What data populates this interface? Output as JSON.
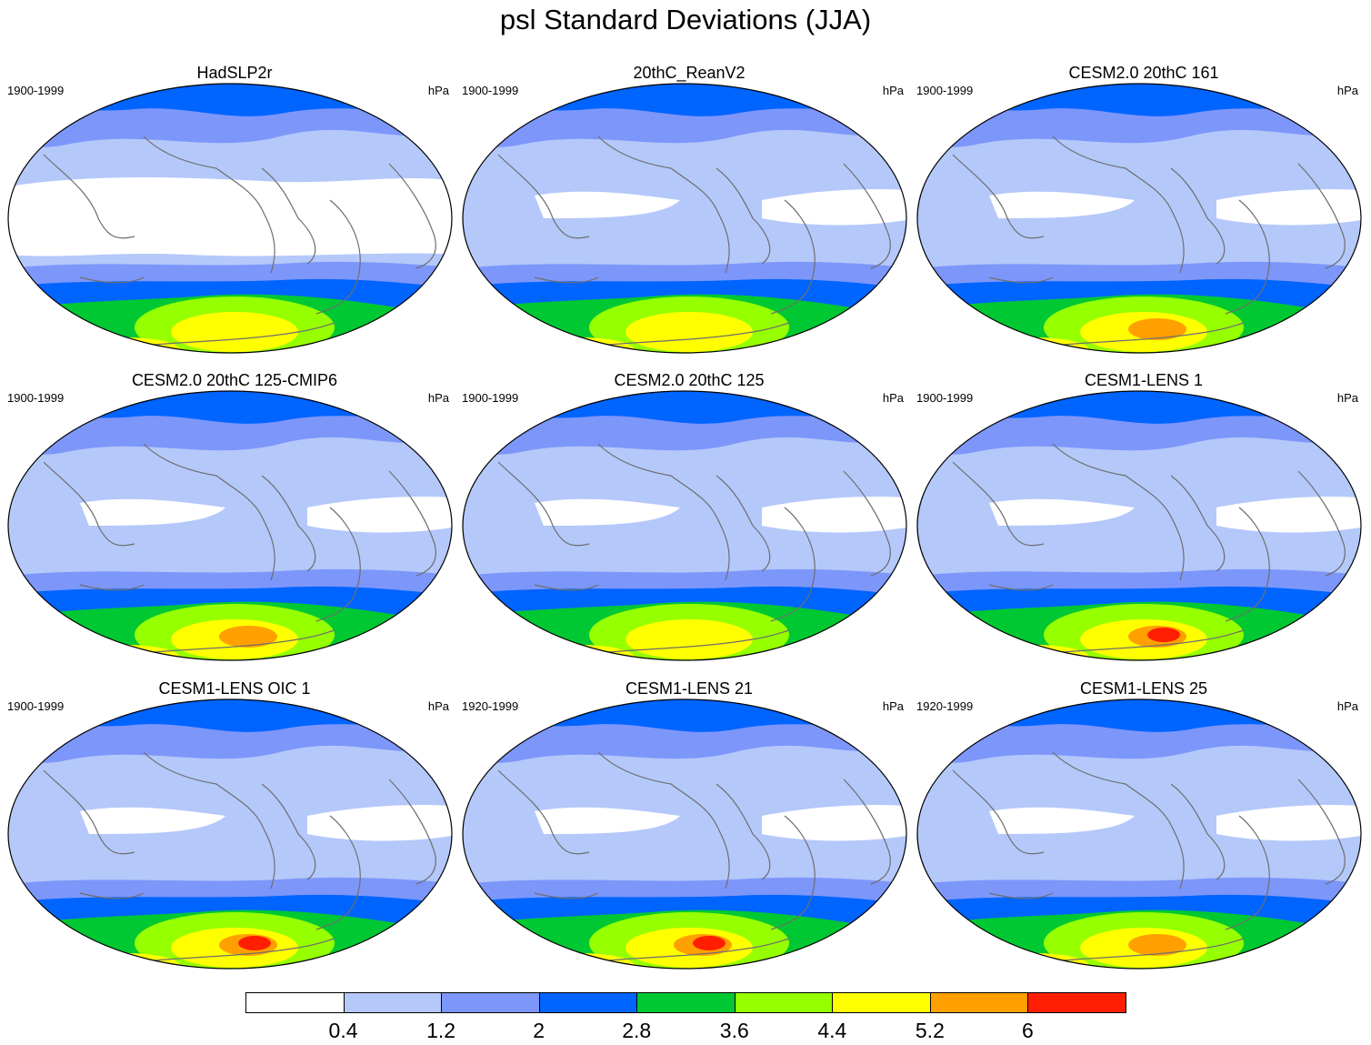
{
  "title": "psl Standard Deviations (JJA)",
  "panels": [
    {
      "title": "HadSLP2r",
      "period": "1900-1999",
      "units": "hPa",
      "peak": 4.5,
      "southern": "moderate"
    },
    {
      "title": "20thC_ReanV2",
      "period": "1900-1999",
      "units": "hPa",
      "peak": 4.4,
      "southern": "moderate"
    },
    {
      "title": "CESM2.0 20thC 161",
      "period": "1900-1999",
      "units": "hPa",
      "peak": 5.4,
      "southern": "strong"
    },
    {
      "title": "CESM2.0 20thC 125-CMIP6",
      "period": "1900-1999",
      "units": "hPa",
      "peak": 5.4,
      "southern": "strong"
    },
    {
      "title": "CESM2.0 20thC 125",
      "period": "1900-1999",
      "units": "hPa",
      "peak": 4.6,
      "southern": "moderate"
    },
    {
      "title": "CESM1-LENS 1",
      "period": "1900-1999",
      "units": "hPa",
      "peak": 6.2,
      "southern": "very strong"
    },
    {
      "title": "CESM1-LENS OIC 1",
      "period": "1900-1999",
      "units": "hPa",
      "peak": 6.2,
      "southern": "very strong"
    },
    {
      "title": "CESM1-LENS 21",
      "period": "1920-1999",
      "units": "hPa",
      "peak": 6.2,
      "southern": "very strong"
    },
    {
      "title": "CESM1-LENS 25",
      "period": "1920-1999",
      "units": "hPa",
      "peak": 5.4,
      "southern": "strong"
    }
  ],
  "colorbar": {
    "labels": [
      "0.4",
      "1.2",
      "2",
      "2.8",
      "3.6",
      "4.4",
      "5.2",
      "6"
    ],
    "colors": [
      "#ffffff",
      "#b4c8fa",
      "#7d96fa",
      "#0064ff",
      "#00c832",
      "#96ff00",
      "#ffff00",
      "#ffa000",
      "#ff1e00"
    ]
  }
}
